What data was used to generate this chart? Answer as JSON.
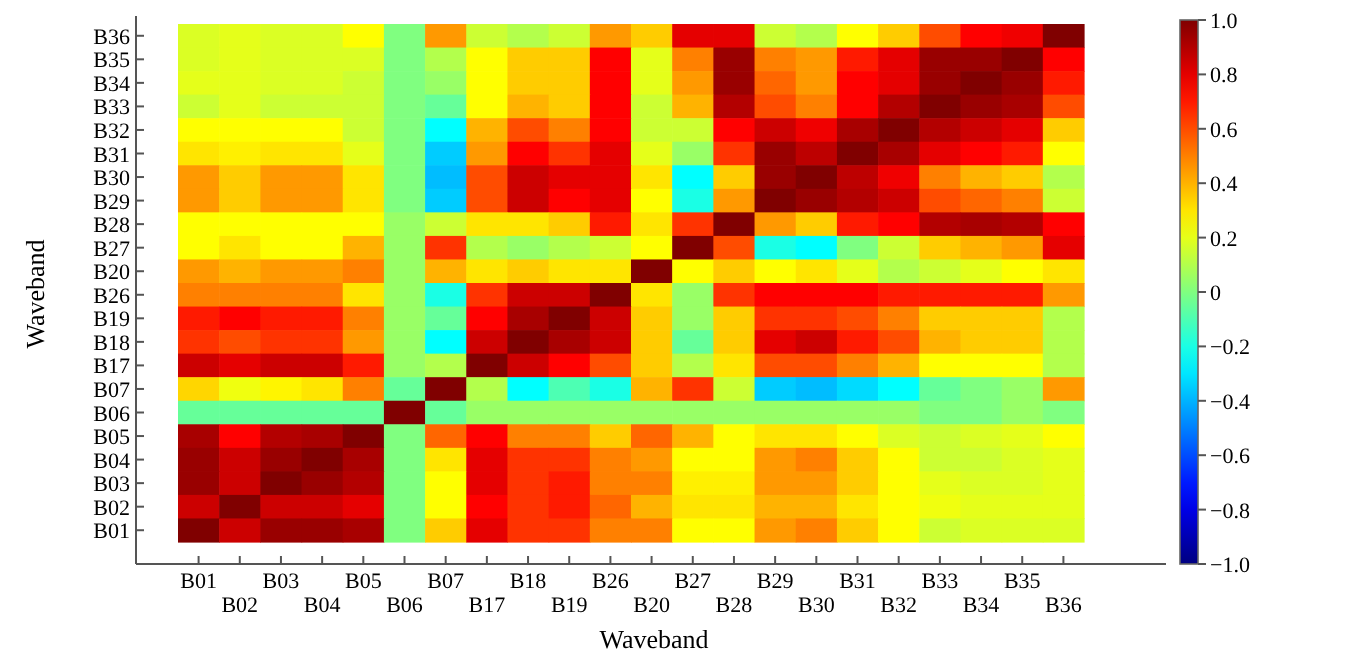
{
  "chart_data": {
    "type": "heatmap",
    "xlabel": "Waveband",
    "ylabel": "Waveband",
    "categories": [
      "B01",
      "B02",
      "B03",
      "B04",
      "B05",
      "B06",
      "B07",
      "B17",
      "B18",
      "B19",
      "B26",
      "B20",
      "B27",
      "B28",
      "B29",
      "B30",
      "B31",
      "B32",
      "B33",
      "B34",
      "B35",
      "B36"
    ],
    "y_categories": [
      "B36",
      "B35",
      "B34",
      "B33",
      "B32",
      "B31",
      "B30",
      "B29",
      "B28",
      "B27",
      "B20",
      "B26",
      "B19",
      "B18",
      "B17",
      "B07",
      "B06",
      "B05",
      "B04",
      "B03",
      "B02",
      "B01"
    ],
    "cells": [
      [
        0.18,
        0.2,
        0.18,
        0.18,
        0.25,
        0.0,
        0.45,
        0.15,
        0.1,
        0.15,
        0.45,
        0.35,
        0.8,
        0.8,
        0.15,
        0.1,
        0.25,
        0.35,
        0.6,
        0.75,
        0.78,
        1.0
      ],
      [
        0.18,
        0.2,
        0.18,
        0.18,
        0.18,
        0.0,
        0.1,
        0.25,
        0.35,
        0.35,
        0.75,
        0.2,
        0.5,
        0.95,
        0.5,
        0.45,
        0.7,
        0.8,
        0.95,
        0.95,
        1.0,
        0.75
      ],
      [
        0.2,
        0.2,
        0.18,
        0.18,
        0.15,
        0.0,
        0.05,
        0.25,
        0.35,
        0.35,
        0.75,
        0.2,
        0.45,
        0.95,
        0.55,
        0.45,
        0.75,
        0.8,
        0.95,
        1.0,
        0.95,
        0.7
      ],
      [
        0.15,
        0.2,
        0.15,
        0.15,
        0.15,
        0.0,
        -0.05,
        0.25,
        0.4,
        0.35,
        0.75,
        0.15,
        0.4,
        0.9,
        0.6,
        0.5,
        0.75,
        0.9,
        1.0,
        0.95,
        0.92,
        0.6
      ],
      [
        0.25,
        0.25,
        0.25,
        0.25,
        0.15,
        0.0,
        -0.25,
        0.4,
        0.6,
        0.5,
        0.75,
        0.15,
        0.15,
        0.75,
        0.85,
        0.78,
        0.92,
        1.0,
        0.9,
        0.85,
        0.8,
        0.35
      ],
      [
        0.3,
        0.28,
        0.3,
        0.3,
        0.2,
        0.0,
        -0.35,
        0.45,
        0.75,
        0.65,
        0.8,
        0.2,
        0.05,
        0.65,
        0.95,
        0.88,
        1.0,
        0.92,
        0.8,
        0.75,
        0.7,
        0.25
      ],
      [
        0.45,
        0.35,
        0.45,
        0.45,
        0.3,
        0.0,
        -0.38,
        0.6,
        0.85,
        0.8,
        0.8,
        0.3,
        -0.25,
        0.35,
        0.95,
        1.0,
        0.88,
        0.78,
        0.5,
        0.4,
        0.35,
        0.1
      ],
      [
        0.45,
        0.35,
        0.45,
        0.45,
        0.3,
        0.0,
        -0.35,
        0.6,
        0.85,
        0.75,
        0.8,
        0.25,
        -0.2,
        0.45,
        1.0,
        0.95,
        0.9,
        0.85,
        0.6,
        0.55,
        0.5,
        0.15
      ],
      [
        0.25,
        0.25,
        0.25,
        0.25,
        0.25,
        0.05,
        0.15,
        0.3,
        0.3,
        0.35,
        0.7,
        0.3,
        0.65,
        1.0,
        0.45,
        0.35,
        0.7,
        0.75,
        0.9,
        0.92,
        0.9,
        0.75
      ],
      [
        0.25,
        0.3,
        0.25,
        0.25,
        0.4,
        0.05,
        0.65,
        0.1,
        0.05,
        0.1,
        0.15,
        0.25,
        1.0,
        0.6,
        -0.2,
        -0.25,
        0.0,
        0.15,
        0.35,
        0.4,
        0.45,
        0.8
      ],
      [
        0.45,
        0.4,
        0.45,
        0.45,
        0.5,
        0.05,
        0.4,
        0.3,
        0.35,
        0.3,
        0.3,
        1.0,
        0.25,
        0.35,
        0.25,
        0.3,
        0.2,
        0.1,
        0.15,
        0.2,
        0.25,
        0.3
      ],
      [
        0.5,
        0.5,
        0.5,
        0.5,
        0.3,
        0.05,
        -0.2,
        0.65,
        0.85,
        0.85,
        1.0,
        0.3,
        0.05,
        0.65,
        0.75,
        0.75,
        0.75,
        0.7,
        0.7,
        0.7,
        0.7,
        0.45
      ],
      [
        0.7,
        0.75,
        0.7,
        0.7,
        0.5,
        0.05,
        -0.05,
        0.75,
        0.92,
        1.0,
        0.85,
        0.35,
        0.05,
        0.35,
        0.65,
        0.65,
        0.6,
        0.5,
        0.35,
        0.35,
        0.35,
        0.1
      ],
      [
        0.65,
        0.6,
        0.65,
        0.65,
        0.45,
        0.05,
        -0.25,
        0.85,
        1.0,
        0.92,
        0.85,
        0.35,
        -0.05,
        0.35,
        0.8,
        0.85,
        0.7,
        0.6,
        0.4,
        0.35,
        0.35,
        0.1
      ],
      [
        0.85,
        0.8,
        0.85,
        0.85,
        0.7,
        0.05,
        0.1,
        1.0,
        0.85,
        0.75,
        0.6,
        0.35,
        0.1,
        0.3,
        0.6,
        0.6,
        0.5,
        0.4,
        0.25,
        0.25,
        0.25,
        0.1
      ],
      [
        0.33,
        0.22,
        0.27,
        0.3,
        0.5,
        -0.05,
        1.0,
        0.1,
        -0.25,
        -0.1,
        -0.2,
        0.4,
        0.65,
        0.15,
        -0.35,
        -0.38,
        -0.32,
        -0.25,
        -0.05,
        0.0,
        0.05,
        0.45
      ],
      [
        -0.05,
        -0.05,
        -0.05,
        -0.05,
        -0.05,
        1.0,
        -0.05,
        0.05,
        0.05,
        0.05,
        0.05,
        0.05,
        0.05,
        0.05,
        0.05,
        0.05,
        0.05,
        0.05,
        0.0,
        0.0,
        0.05,
        0.0
      ],
      [
        0.92,
        0.75,
        0.9,
        0.92,
        1.0,
        0.0,
        0.55,
        0.75,
        0.5,
        0.5,
        0.35,
        0.55,
        0.4,
        0.25,
        0.3,
        0.3,
        0.25,
        0.18,
        0.15,
        0.18,
        0.2,
        0.25
      ],
      [
        0.95,
        0.85,
        0.95,
        1.0,
        0.92,
        0.0,
        0.3,
        0.8,
        0.65,
        0.65,
        0.5,
        0.45,
        0.25,
        0.25,
        0.45,
        0.5,
        0.35,
        0.25,
        0.15,
        0.15,
        0.18,
        0.2
      ],
      [
        0.95,
        0.85,
        1.0,
        0.95,
        0.9,
        0.0,
        0.25,
        0.8,
        0.65,
        0.7,
        0.5,
        0.5,
        0.28,
        0.28,
        0.45,
        0.45,
        0.35,
        0.25,
        0.2,
        0.18,
        0.18,
        0.2
      ],
      [
        0.85,
        1.0,
        0.85,
        0.85,
        0.8,
        0.0,
        0.25,
        0.75,
        0.65,
        0.7,
        0.55,
        0.4,
        0.3,
        0.3,
        0.4,
        0.4,
        0.3,
        0.25,
        0.22,
        0.2,
        0.2,
        0.2
      ],
      [
        1.0,
        0.85,
        0.95,
        0.95,
        0.92,
        0.0,
        0.35,
        0.8,
        0.65,
        0.65,
        0.5,
        0.5,
        0.25,
        0.25,
        0.45,
        0.5,
        0.35,
        0.25,
        0.15,
        0.18,
        0.18,
        0.18
      ]
    ],
    "clim": [
      -1,
      1
    ],
    "cticks": [
      {
        "value": 1,
        "label": "1.0"
      },
      0.8,
      0.6,
      0.4,
      0.2,
      0,
      -0.2,
      -0.4,
      -0.6,
      -0.8,
      {
        "value": -1,
        "label": "−1.0"
      }
    ]
  }
}
